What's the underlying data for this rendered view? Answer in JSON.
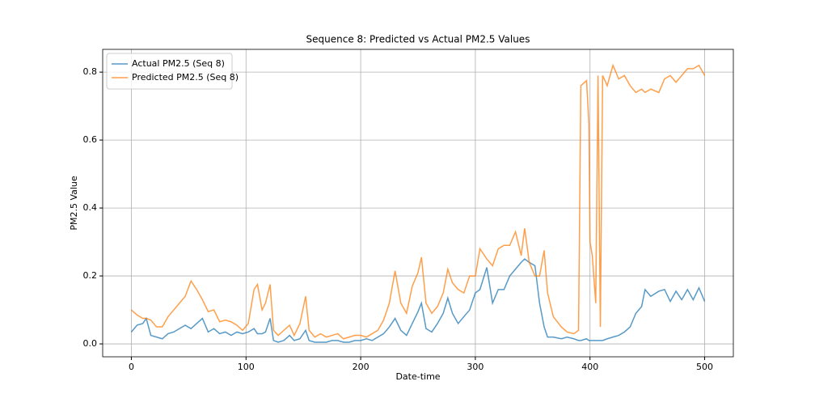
{
  "chart_data": {
    "type": "line",
    "title": "Sequence 8: Predicted vs Actual PM2.5 Values",
    "x_label": "Date-time",
    "y_label": "PM2.5 Value",
    "x": [
      0,
      5,
      10,
      13,
      17,
      22,
      27,
      32,
      37,
      42,
      47,
      52,
      57,
      62,
      67,
      72,
      77,
      82,
      87,
      92,
      97,
      102,
      107,
      110,
      114,
      117,
      121,
      124,
      128,
      133,
      138,
      142,
      147,
      152,
      155,
      160,
      165,
      170,
      175,
      180,
      185,
      190,
      195,
      200,
      205,
      210,
      215,
      220,
      225,
      230,
      235,
      240,
      245,
      250,
      253,
      257,
      262,
      267,
      272,
      276,
      280,
      285,
      290,
      295,
      300,
      304,
      310,
      315,
      320,
      325,
      330,
      335,
      340,
      343,
      347,
      352,
      356,
      360,
      363,
      368,
      375,
      380,
      386,
      390,
      392,
      397,
      399,
      400,
      402,
      405,
      407,
      409,
      411,
      415,
      420,
      425,
      430,
      435,
      440,
      445,
      448,
      453,
      460,
      465,
      470,
      475,
      480,
      485,
      490,
      495,
      500
    ],
    "series": [
      {
        "name": "Actual PM2.5 (Seq 8)",
        "color": "#1f77b4",
        "values": [
          0.035,
          0.055,
          0.06,
          0.075,
          0.025,
          0.02,
          0.015,
          0.03,
          0.035,
          0.045,
          0.055,
          0.045,
          0.06,
          0.075,
          0.035,
          0.045,
          0.03,
          0.035,
          0.025,
          0.035,
          0.03,
          0.035,
          0.045,
          0.03,
          0.03,
          0.035,
          0.075,
          0.01,
          0.005,
          0.01,
          0.025,
          0.01,
          0.015,
          0.04,
          0.01,
          0.005,
          0.005,
          0.005,
          0.01,
          0.01,
          0.005,
          0.005,
          0.01,
          0.01,
          0.015,
          0.01,
          0.02,
          0.03,
          0.05,
          0.075,
          0.04,
          0.025,
          0.06,
          0.095,
          0.12,
          0.045,
          0.035,
          0.06,
          0.09,
          0.135,
          0.09,
          0.06,
          0.08,
          0.1,
          0.15,
          0.16,
          0.225,
          0.12,
          0.16,
          0.16,
          0.2,
          0.22,
          0.24,
          0.25,
          0.24,
          0.23,
          0.12,
          0.05,
          0.02,
          0.02,
          0.015,
          0.02,
          0.015,
          0.01,
          0.01,
          0.015,
          0.01,
          0.01,
          0.01,
          0.01,
          0.01,
          0.01,
          0.01,
          0.015,
          0.02,
          0.025,
          0.035,
          0.05,
          0.09,
          0.11,
          0.16,
          0.14,
          0.155,
          0.16,
          0.125,
          0.155,
          0.13,
          0.16,
          0.13,
          0.165,
          0.125
        ]
      },
      {
        "name": "Predicted PM2.5 (Seq 8)",
        "color": "#ff7f0e",
        "values": [
          0.1,
          0.085,
          0.075,
          0.075,
          0.07,
          0.05,
          0.05,
          0.08,
          0.1,
          0.12,
          0.14,
          0.185,
          0.16,
          0.13,
          0.095,
          0.1,
          0.065,
          0.07,
          0.065,
          0.055,
          0.04,
          0.06,
          0.16,
          0.175,
          0.1,
          0.12,
          0.175,
          0.04,
          0.025,
          0.04,
          0.055,
          0.025,
          0.06,
          0.14,
          0.04,
          0.02,
          0.03,
          0.02,
          0.025,
          0.03,
          0.015,
          0.02,
          0.025,
          0.025,
          0.02,
          0.03,
          0.04,
          0.07,
          0.12,
          0.215,
          0.12,
          0.09,
          0.17,
          0.21,
          0.255,
          0.12,
          0.09,
          0.11,
          0.15,
          0.22,
          0.18,
          0.16,
          0.15,
          0.2,
          0.2,
          0.28,
          0.25,
          0.23,
          0.28,
          0.29,
          0.29,
          0.33,
          0.26,
          0.34,
          0.24,
          0.2,
          0.2,
          0.275,
          0.15,
          0.08,
          0.05,
          0.035,
          0.03,
          0.04,
          0.76,
          0.775,
          0.65,
          0.3,
          0.26,
          0.12,
          0.79,
          0.05,
          0.79,
          0.76,
          0.82,
          0.78,
          0.79,
          0.76,
          0.74,
          0.75,
          0.74,
          0.75,
          0.74,
          0.78,
          0.79,
          0.77,
          0.79,
          0.81,
          0.81,
          0.82,
          0.79
        ]
      }
    ],
    "xlim": [
      -25,
      525
    ],
    "ylim": [
      -0.038,
      0.867
    ],
    "xticks": [
      0,
      100,
      200,
      300,
      400,
      500
    ],
    "yticks": [
      {
        "value": 0,
        "label": "0.0"
      },
      0.2,
      0.4,
      0.6,
      0.8
    ],
    "grid": true,
    "legend": "upper-left"
  }
}
